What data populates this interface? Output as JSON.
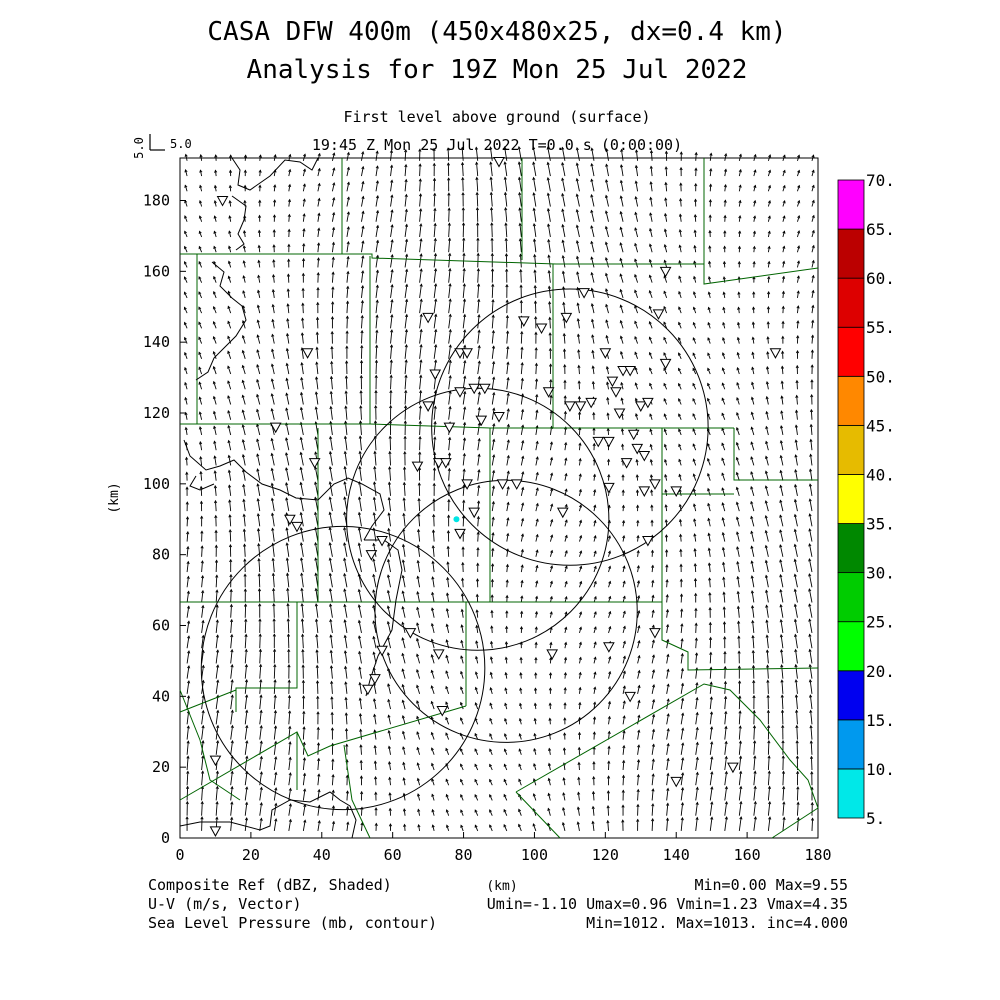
{
  "header": {
    "title_line1": "CASA DFW 400m (450x480x25, dx=0.4 km)",
    "title_line2": "Analysis for 19Z Mon 25 Jul 2022",
    "level_label": "First level above ground (surface)",
    "time_label": "19:45 Z Mon 25 Jul 2022    T=0.0 s (0:00:00)",
    "vector_key_value": "5.0",
    "vector_key_label": "5.0"
  },
  "colors": {
    "boundaries": "#006400",
    "contours": "#000000",
    "vectors": "#000000",
    "radar_dot": "#00e5e5"
  },
  "chart_data": {
    "type": "heatmap",
    "xlabel": "(km)",
    "ylabel": "(km)",
    "xlim": [
      0,
      180
    ],
    "ylim": [
      0,
      192
    ],
    "x_ticks": [
      "0",
      "20",
      "40",
      "60",
      "80",
      "100",
      "120",
      "140",
      "160",
      "180"
    ],
    "y_ticks": [
      "0",
      "20",
      "40",
      "60",
      "80",
      "100",
      "120",
      "140",
      "160",
      "180"
    ],
    "colorbar": {
      "labels": [
        "5.",
        "10.",
        "15.",
        "20.",
        "25.",
        "30.",
        "35.",
        "40.",
        "45.",
        "50.",
        "55.",
        "60.",
        "65.",
        "70."
      ],
      "colors": [
        "#00e8e8",
        "#0099ee",
        "#0000f0",
        "#00ff00",
        "#00cc00",
        "#008800",
        "#ffff00",
        "#e6bb00",
        "#ff8800",
        "#ff0000",
        "#dd0000",
        "#bb0000",
        "#ff00ff"
      ]
    },
    "radar_rings_km": [
      {
        "center": [
          110,
          116
        ],
        "radius": 39
      },
      {
        "center": [
          84,
          90
        ],
        "radius": 37
      },
      {
        "center": [
          92,
          64
        ],
        "radius": 37
      },
      {
        "center": [
          46,
          48
        ],
        "radius": 40
      }
    ],
    "radar_site_km": [
      78,
      90
    ],
    "stations_km": [
      [
        12,
        180
      ],
      [
        27,
        116
      ],
      [
        36,
        137
      ],
      [
        38,
        106
      ],
      [
        31,
        90
      ],
      [
        33,
        88
      ],
      [
        54,
        80
      ],
      [
        57,
        84
      ],
      [
        55,
        45
      ],
      [
        57,
        53
      ],
      [
        53,
        42
      ],
      [
        65,
        58
      ],
      [
        73,
        52
      ],
      [
        74,
        36
      ],
      [
        70,
        122
      ],
      [
        72,
        131
      ],
      [
        79,
        137
      ],
      [
        81,
        137
      ],
      [
        83,
        127
      ],
      [
        86,
        127
      ],
      [
        85,
        118
      ],
      [
        90,
        119
      ],
      [
        79,
        126
      ],
      [
        70,
        147
      ],
      [
        76,
        116
      ],
      [
        67,
        105
      ],
      [
        73,
        106
      ],
      [
        75,
        106
      ],
      [
        79,
        86
      ],
      [
        81,
        100
      ],
      [
        83,
        92
      ],
      [
        91,
        100
      ],
      [
        95,
        100
      ],
      [
        97,
        146
      ],
      [
        102,
        144
      ],
      [
        104,
        126
      ],
      [
        109,
        147
      ],
      [
        108,
        92
      ],
      [
        110,
        122
      ],
      [
        113,
        122
      ],
      [
        114,
        154
      ],
      [
        116,
        123
      ],
      [
        118,
        112
      ],
      [
        121,
        112
      ],
      [
        120,
        137
      ],
      [
        122,
        129
      ],
      [
        124,
        120
      ],
      [
        123,
        126
      ],
      [
        125,
        132
      ],
      [
        127,
        132
      ],
      [
        128,
        114
      ],
      [
        126,
        106
      ],
      [
        129,
        110
      ],
      [
        131,
        108
      ],
      [
        130,
        122
      ],
      [
        132,
        123
      ],
      [
        134,
        100
      ],
      [
        131,
        98
      ],
      [
        132,
        84
      ],
      [
        135,
        148
      ],
      [
        137,
        134
      ],
      [
        137,
        160
      ],
      [
        121,
        99
      ],
      [
        121,
        54
      ],
      [
        134,
        58
      ],
      [
        127,
        40
      ],
      [
        140,
        98
      ],
      [
        140,
        16
      ],
      [
        156,
        20
      ],
      [
        168,
        137
      ],
      [
        105,
        52
      ],
      [
        90,
        191
      ],
      [
        10,
        22
      ],
      [
        10,
        2
      ]
    ],
    "composite_ref": {
      "min": "0.00",
      "max": "9.55"
    },
    "wind": {
      "umin": "-1.10",
      "umax": "0.96",
      "vmin": "1.23",
      "vmax": "4.35"
    },
    "slp": {
      "min": "1012.",
      "max": "1013.",
      "inc": "4.000"
    }
  },
  "footer": {
    "left": [
      "Composite Ref (dBZ, Shaded)",
      "U-V (m/s, Vector)",
      "Sea Level Pressure (mb, contour)"
    ],
    "center": "(km)",
    "right": [
      "Min=0.00 Max=9.55",
      "Umin=-1.10 Umax=0.96 Vmin=1.23 Vmax=4.35",
      "Min=1012. Max=1013. inc=4.000"
    ]
  }
}
